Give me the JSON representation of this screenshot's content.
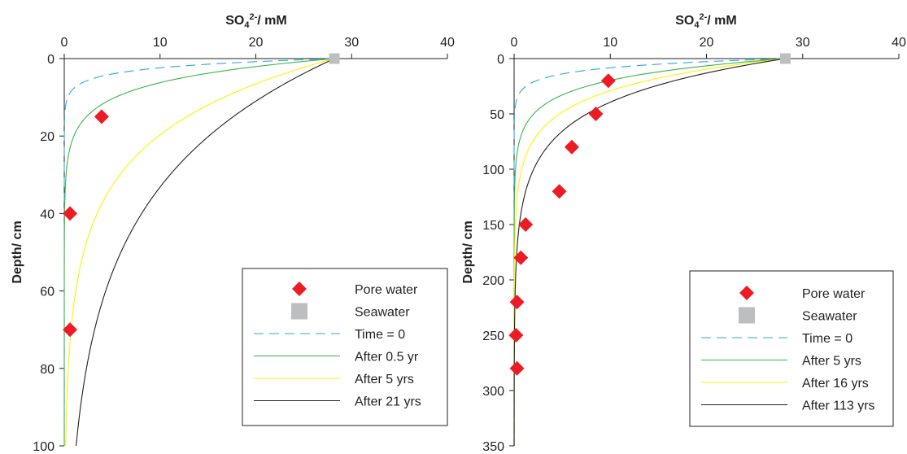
{
  "chart_data": [
    {
      "type": "line",
      "xlabel_main": "SO",
      "xlabel_sub": "4",
      "xlabel_sup": "2-",
      "xlabel_rest": "/ mM",
      "ylabel": "Depth/ cm",
      "xlim": [
        0,
        40
      ],
      "ylim": [
        0,
        100
      ],
      "y_inverted": true,
      "x_axis_position": "top",
      "x_ticks": [
        0,
        10,
        20,
        30,
        40
      ],
      "y_ticks": [
        0,
        20,
        40,
        60,
        80,
        100
      ],
      "legend_position": "bottom-right",
      "points": [
        {
          "name": "Pore water",
          "marker": "diamond",
          "color": "#ed1c24",
          "x": [
            3.9,
            0.6,
            0.6
          ],
          "y": [
            15,
            40,
            70
          ]
        },
        {
          "name": "Seawater",
          "marker": "square",
          "color": "#bcbec0",
          "x": [
            28.2
          ],
          "y": [
            0
          ]
        }
      ],
      "curves": [
        {
          "name": "Time = 0",
          "color": "#27aae1",
          "dash": "dashed",
          "start": 28.2,
          "decay_scale": 2.3
        },
        {
          "name": "After 0.5 yr",
          "color": "#39b54a",
          "dash": "solid",
          "start": 28.2,
          "decay_scale": 6.0
        },
        {
          "name": "After 5 yrs",
          "color": "#fff200",
          "dash": "solid",
          "start": 28.2,
          "decay_scale": 19.0
        },
        {
          "name": "After 21 yrs",
          "color": "#231f20",
          "dash": "solid",
          "start": 28.2,
          "decay_scale": 32.0
        }
      ]
    },
    {
      "type": "line",
      "xlabel_main": "SO",
      "xlabel_sub": "4",
      "xlabel_sup": "2-",
      "xlabel_rest": "/ mM",
      "ylabel": "Depth/ cm",
      "xlim": [
        0,
        40
      ],
      "ylim": [
        0,
        350
      ],
      "y_inverted": true,
      "x_axis_position": "top",
      "x_ticks": [
        0,
        10,
        20,
        30,
        40
      ],
      "y_ticks": [
        0,
        50,
        100,
        150,
        200,
        250,
        300,
        350
      ],
      "legend_position": "bottom-right",
      "points": [
        {
          "name": "Pore water",
          "marker": "diamond",
          "color": "#ed1c24",
          "x": [
            9.8,
            8.5,
            6.0,
            4.7,
            1.2,
            0.7,
            0.3,
            0.2,
            0.3
          ],
          "y": [
            20,
            50,
            80,
            120,
            150,
            180,
            220,
            250,
            280
          ]
        },
        {
          "name": "Seawater",
          "marker": "square",
          "color": "#bcbec0",
          "x": [
            28.2
          ],
          "y": [
            0
          ]
        }
      ],
      "curves": [
        {
          "name": "Time = 0",
          "color": "#27aae1",
          "dash": "dashed",
          "start": 28.2,
          "decay_scale": 8.0
        },
        {
          "name": "After 5 yrs",
          "color": "#39b54a",
          "dash": "solid",
          "start": 28.2,
          "decay_scale": 19.0
        },
        {
          "name": "After 16 yrs",
          "color": "#fff200",
          "dash": "solid",
          "start": 28.2,
          "decay_scale": 28.0
        },
        {
          "name": "After 113 yrs",
          "color": "#231f20",
          "dash": "solid",
          "start": 28.2,
          "decay_scale": 38.0
        }
      ]
    }
  ]
}
